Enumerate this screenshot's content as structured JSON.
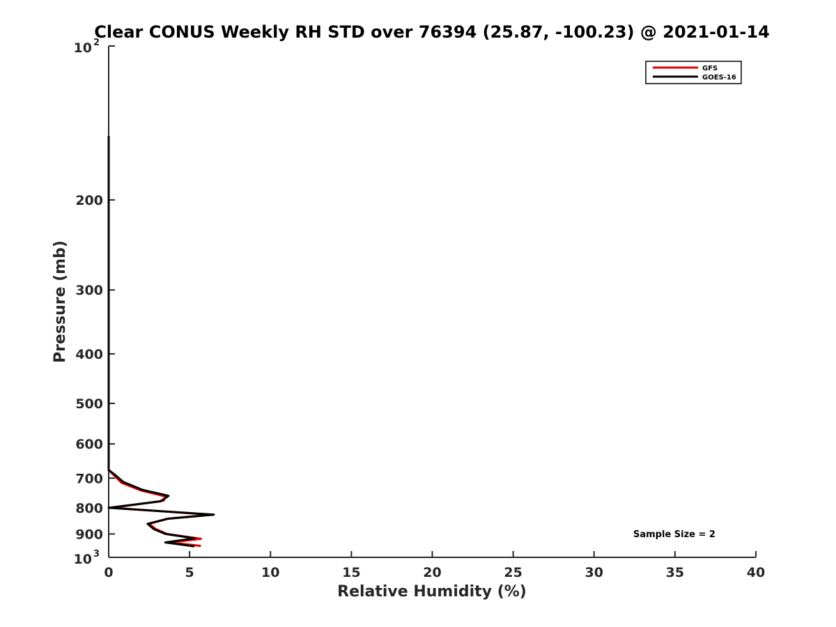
{
  "chart_data": {
    "type": "line",
    "title": "Clear CONUS Weekly RH STD over 76394 (25.87, -100.23) @ 2021-01-14",
    "xlabel": "Relative Humidity (%)",
    "ylabel": "Pressure (mb)",
    "xlim": [
      0,
      40
    ],
    "ylim": [
      100,
      1000
    ],
    "y_scale": "log",
    "y_reversed": true,
    "x_ticks": [
      "0",
      "5",
      "10",
      "15",
      "20",
      "25",
      "30",
      "35",
      "40"
    ],
    "y_ticks": [
      {
        "value": 100,
        "base": "10",
        "exp": "2"
      },
      {
        "value": 200,
        "label": "200"
      },
      {
        "value": 300,
        "label": "300"
      },
      {
        "value": 400,
        "label": "400"
      },
      {
        "value": 500,
        "label": "500"
      },
      {
        "value": 600,
        "label": "600"
      },
      {
        "value": 700,
        "label": "700"
      },
      {
        "value": 800,
        "label": "800"
      },
      {
        "value": 900,
        "label": "900"
      },
      {
        "value": 1000,
        "base": "10",
        "exp": "3"
      }
    ],
    "legend_position": "top-right",
    "annotation": "Sample Size = 2",
    "series": [
      {
        "name": "GFS",
        "color": "#e00000",
        "points": [
          [
            0,
            150
          ],
          [
            0,
            200
          ],
          [
            0,
            300
          ],
          [
            0,
            400
          ],
          [
            0,
            500
          ],
          [
            0,
            600
          ],
          [
            0,
            675
          ],
          [
            0.3,
            690
          ],
          [
            0.8,
            715
          ],
          [
            2.0,
            740
          ],
          [
            3.5,
            760
          ],
          [
            3.4,
            775
          ],
          [
            0.2,
            800
          ],
          [
            6.3,
            825
          ],
          [
            3.7,
            840
          ],
          [
            2.5,
            860
          ],
          [
            2.9,
            880
          ],
          [
            3.6,
            900
          ],
          [
            5.7,
            920
          ],
          [
            3.8,
            935
          ],
          [
            5.7,
            950
          ]
        ]
      },
      {
        "name": "GOES-16",
        "color": "#000000",
        "points": [
          [
            0,
            150
          ],
          [
            0,
            200
          ],
          [
            0,
            300
          ],
          [
            0,
            400
          ],
          [
            0,
            500
          ],
          [
            0,
            600
          ],
          [
            0,
            675
          ],
          [
            0.4,
            690
          ],
          [
            0.9,
            712
          ],
          [
            2.1,
            738
          ],
          [
            3.7,
            758
          ],
          [
            3.2,
            777
          ],
          [
            0.0,
            800
          ],
          [
            6.5,
            825
          ],
          [
            3.6,
            841
          ],
          [
            2.4,
            860
          ],
          [
            2.8,
            881
          ],
          [
            3.5,
            900
          ],
          [
            5.3,
            918
          ],
          [
            3.5,
            935
          ],
          [
            5.3,
            952
          ]
        ]
      }
    ]
  }
}
